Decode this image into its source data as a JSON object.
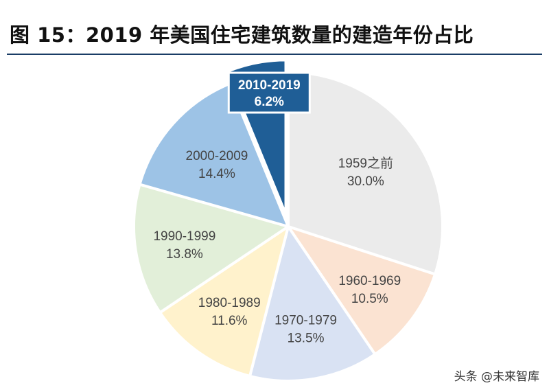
{
  "title": "图 15：2019 年美国住宅建筑数量的建造年份占比",
  "watermark": "头条 @未来智库",
  "chart_data": {
    "type": "pie",
    "start": "12 o'clock",
    "direction": "clockwise",
    "slices": [
      {
        "label": "1959之前",
        "value": 30.0,
        "value_label": "30.0%",
        "color": "#ebebeb"
      },
      {
        "label": "1960-1969",
        "value": 10.5,
        "value_label": "10.5%",
        "color": "#fbe3d2"
      },
      {
        "label": "1970-1979",
        "value": 13.5,
        "value_label": "13.5%",
        "color": "#d9e2f3"
      },
      {
        "label": "1980-1989",
        "value": 11.6,
        "value_label": "11.6%",
        "color": "#fff2cc"
      },
      {
        "label": "1990-1999",
        "value": 13.8,
        "value_label": "13.8%",
        "color": "#e2efd9"
      },
      {
        "label": "2000-2009",
        "value": 14.4,
        "value_label": "14.4%",
        "color": "#9dc3e6"
      },
      {
        "label": "2010-2019",
        "value": 6.2,
        "value_label": "6.2%",
        "color": "#1f5e96",
        "exploded": true,
        "label_boxed": true
      }
    ]
  }
}
